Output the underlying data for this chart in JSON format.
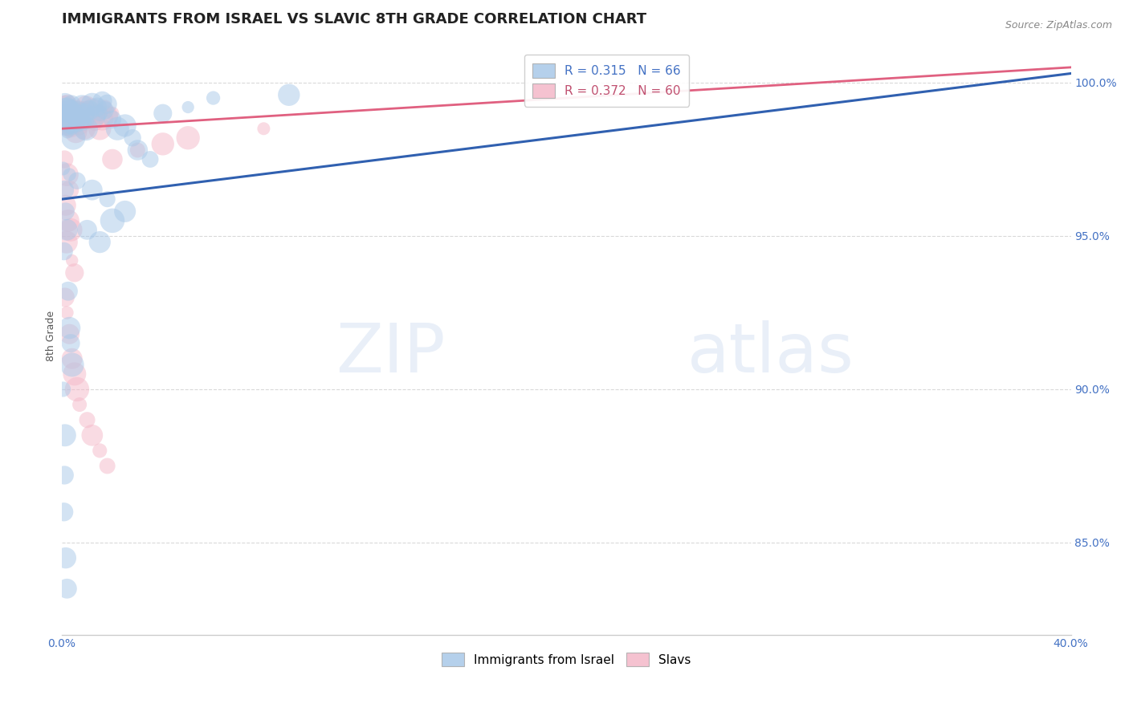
{
  "title": "IMMIGRANTS FROM ISRAEL VS SLAVIC 8TH GRADE CORRELATION CHART",
  "source": "Source: ZipAtlas.com",
  "ylabel": "8th Grade",
  "xlim": [
    0.0,
    40.0
  ],
  "ylim": [
    82.0,
    101.5
  ],
  "yticks": [
    85.0,
    90.0,
    95.0,
    100.0
  ],
  "xticks": [
    0.0,
    40.0
  ],
  "legend1_label": "Immigrants from Israel",
  "legend2_label": "Slavs",
  "R_blue": 0.315,
  "N_blue": 66,
  "R_pink": 0.372,
  "N_pink": 60,
  "blue_color": "#a8c8e8",
  "pink_color": "#f4b8c8",
  "blue_line_color": "#3060b0",
  "pink_line_color": "#e06080",
  "blue_scatter": [
    [
      0.05,
      97.2
    ],
    [
      0.08,
      98.8
    ],
    [
      0.1,
      99.0
    ],
    [
      0.12,
      99.3
    ],
    [
      0.15,
      99.1
    ],
    [
      0.18,
      98.6
    ],
    [
      0.2,
      99.2
    ],
    [
      0.22,
      98.4
    ],
    [
      0.25,
      99.0
    ],
    [
      0.28,
      98.8
    ],
    [
      0.3,
      99.1
    ],
    [
      0.35,
      98.7
    ],
    [
      0.38,
      99.3
    ],
    [
      0.4,
      98.5
    ],
    [
      0.42,
      99.0
    ],
    [
      0.45,
      98.2
    ],
    [
      0.5,
      99.1
    ],
    [
      0.55,
      98.9
    ],
    [
      0.6,
      99.0
    ],
    [
      0.65,
      98.6
    ],
    [
      0.7,
      98.8
    ],
    [
      0.8,
      99.2
    ],
    [
      0.85,
      98.7
    ],
    [
      0.9,
      99.0
    ],
    [
      0.95,
      98.5
    ],
    [
      1.0,
      98.8
    ],
    [
      1.1,
      99.1
    ],
    [
      1.2,
      99.3
    ],
    [
      1.3,
      98.9
    ],
    [
      1.4,
      99.2
    ],
    [
      1.5,
      99.0
    ],
    [
      1.6,
      99.4
    ],
    [
      1.7,
      99.1
    ],
    [
      1.8,
      99.3
    ],
    [
      2.0,
      98.8
    ],
    [
      2.2,
      98.5
    ],
    [
      2.5,
      98.6
    ],
    [
      2.8,
      98.2
    ],
    [
      3.0,
      97.8
    ],
    [
      3.5,
      97.5
    ],
    [
      0.1,
      96.5
    ],
    [
      0.15,
      95.8
    ],
    [
      0.2,
      95.2
    ],
    [
      0.08,
      94.5
    ],
    [
      0.25,
      93.2
    ],
    [
      0.3,
      92.0
    ],
    [
      0.35,
      91.5
    ],
    [
      0.4,
      90.8
    ],
    [
      0.05,
      90.0
    ],
    [
      0.12,
      88.5
    ],
    [
      0.1,
      87.2
    ],
    [
      0.08,
      86.0
    ],
    [
      0.15,
      84.5
    ],
    [
      0.2,
      83.5
    ],
    [
      4.0,
      99.0
    ],
    [
      5.0,
      99.2
    ],
    [
      6.0,
      99.5
    ],
    [
      9.0,
      99.6
    ],
    [
      1.0,
      95.2
    ],
    [
      1.5,
      94.8
    ],
    [
      2.0,
      95.5
    ],
    [
      2.5,
      95.8
    ],
    [
      0.3,
      97.0
    ],
    [
      0.6,
      96.8
    ],
    [
      1.2,
      96.5
    ],
    [
      1.8,
      96.2
    ]
  ],
  "pink_scatter": [
    [
      0.05,
      99.0
    ],
    [
      0.08,
      98.8
    ],
    [
      0.1,
      99.2
    ],
    [
      0.12,
      99.0
    ],
    [
      0.15,
      98.7
    ],
    [
      0.18,
      99.1
    ],
    [
      0.2,
      98.9
    ],
    [
      0.22,
      99.3
    ],
    [
      0.25,
      98.6
    ],
    [
      0.28,
      99.0
    ],
    [
      0.3,
      98.8
    ],
    [
      0.35,
      99.1
    ],
    [
      0.38,
      98.5
    ],
    [
      0.4,
      98.9
    ],
    [
      0.42,
      99.2
    ],
    [
      0.45,
      98.7
    ],
    [
      0.5,
      99.0
    ],
    [
      0.55,
      98.4
    ],
    [
      0.6,
      98.8
    ],
    [
      0.65,
      99.1
    ],
    [
      0.7,
      98.6
    ],
    [
      0.8,
      98.9
    ],
    [
      0.85,
      99.0
    ],
    [
      0.9,
      98.5
    ],
    [
      0.95,
      99.2
    ],
    [
      1.0,
      99.0
    ],
    [
      1.1,
      98.8
    ],
    [
      1.2,
      99.1
    ],
    [
      1.3,
      98.7
    ],
    [
      1.4,
      99.0
    ],
    [
      1.5,
      98.5
    ],
    [
      1.6,
      98.8
    ],
    [
      1.7,
      99.2
    ],
    [
      1.8,
      98.9
    ],
    [
      2.0,
      99.0
    ],
    [
      0.1,
      97.5
    ],
    [
      0.2,
      97.0
    ],
    [
      0.3,
      96.5
    ],
    [
      0.15,
      96.0
    ],
    [
      0.25,
      95.5
    ],
    [
      0.35,
      95.2
    ],
    [
      0.18,
      94.8
    ],
    [
      0.4,
      94.2
    ],
    [
      0.5,
      93.8
    ],
    [
      0.12,
      93.0
    ],
    [
      0.2,
      92.5
    ],
    [
      0.3,
      91.8
    ],
    [
      0.4,
      91.0
    ],
    [
      0.5,
      90.5
    ],
    [
      0.6,
      90.0
    ],
    [
      0.7,
      89.5
    ],
    [
      1.0,
      89.0
    ],
    [
      1.2,
      88.5
    ],
    [
      1.5,
      88.0
    ],
    [
      1.8,
      87.5
    ],
    [
      2.0,
      97.5
    ],
    [
      3.0,
      97.8
    ],
    [
      4.0,
      98.0
    ],
    [
      5.0,
      98.2
    ],
    [
      8.0,
      98.5
    ]
  ],
  "title_fontsize": 13,
  "axis_label_fontsize": 9,
  "tick_fontsize": 10,
  "legend_fontsize": 11,
  "background_color": "#ffffff",
  "grid_color": "#aaaaaa",
  "grid_alpha": 0.45,
  "watermark_color": "#c8d8ee",
  "watermark_alpha": 0.4
}
